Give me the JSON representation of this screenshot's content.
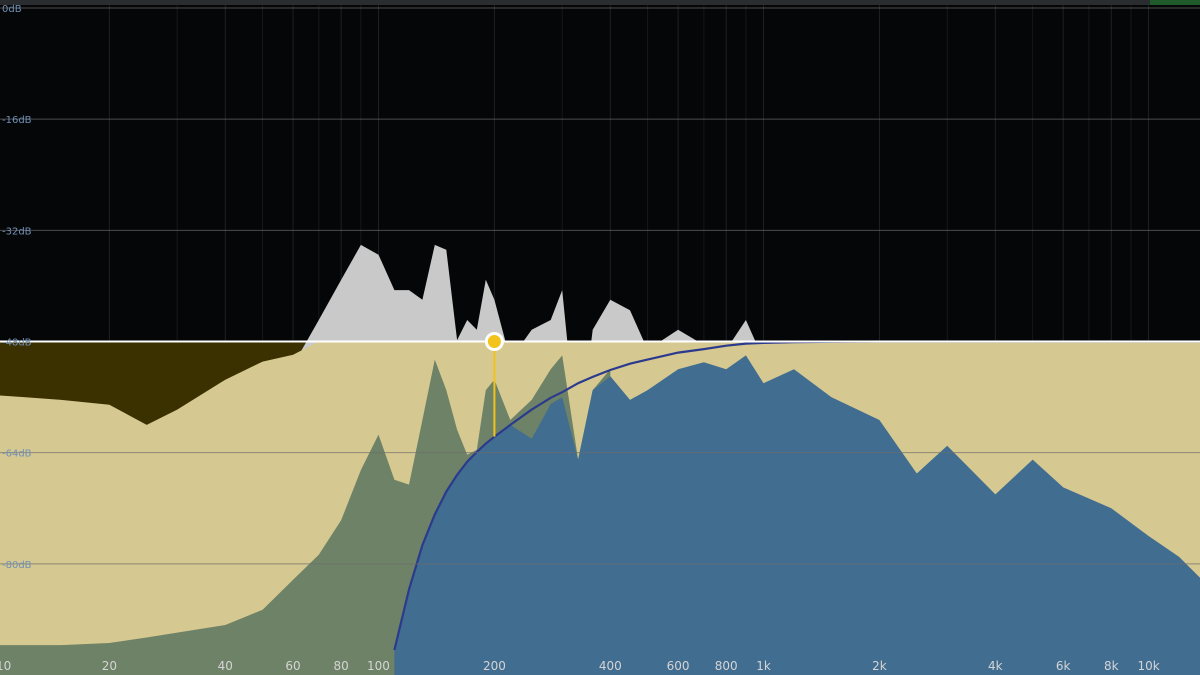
{
  "chart_data": {
    "type": "area",
    "xscale": "log",
    "x": [
      10,
      12,
      15,
      20,
      25,
      30,
      40,
      50,
      60,
      70,
      80,
      90,
      100,
      110,
      120,
      130,
      140,
      150,
      160,
      170,
      180,
      190,
      200,
      220,
      250,
      280,
      300,
      330,
      360,
      400,
      450,
      500,
      600,
      700,
      800,
      900,
      1000,
      1200,
      1500,
      2000,
      2500,
      3000,
      4000,
      5000,
      6000,
      8000,
      10000,
      12000,
      13600
    ],
    "xlim": [
      10.4,
      13600
    ],
    "ylim": [
      -96,
      0
    ],
    "xticks": [
      10,
      20,
      40,
      60,
      80,
      100,
      200,
      400,
      600,
      800,
      {
        "value": 1000,
        "label": "1k"
      },
      {
        "value": 2000,
        "label": "2k"
      },
      {
        "value": 4000,
        "label": "4k"
      },
      {
        "value": 6000,
        "label": "6k"
      },
      {
        "value": 8000,
        "label": "8k"
      },
      {
        "value": 10000,
        "label": "10k"
      }
    ],
    "xminor": [
      30,
      50,
      70,
      90,
      300,
      500,
      700,
      900,
      3000,
      5000,
      7000,
      9000
    ],
    "yticks": [
      {
        "value": 0,
        "label": "0dB"
      },
      {
        "value": -16,
        "label": "-16dB"
      },
      {
        "value": -32,
        "label": "-32dB"
      },
      {
        "value": -48,
        "label": "-48dB"
      },
      {
        "value": -64,
        "label": "-64dB"
      },
      {
        "value": -80,
        "label": "-80dB"
      }
    ],
    "threshold": -48,
    "threshold_color": "#ffffff",
    "below_threshold_color": "#3b3000",
    "node": {
      "x": 200,
      "y": -48,
      "color": "#f2c31b"
    },
    "series": [
      {
        "color": "#c9c9c9",
        "fill": true,
        "values": [
          -75,
          -75,
          -74,
          -72,
          -70,
          -68,
          -64,
          -60,
          -51.4,
          -44.9,
          -39.1,
          -34.1,
          -35.5,
          -40.6,
          -40.6,
          -42.0,
          -34.1,
          -34.8,
          -47.8,
          -44.9,
          -46.3,
          -39.1,
          -42.0,
          -50.6,
          -46.3,
          -44.9,
          -40.6,
          -63.6,
          -46.3,
          -42.0,
          -43.5,
          -49.2,
          -46.3,
          -48.5,
          -49.2,
          -44.9,
          -50.6,
          -48.5,
          -52.1,
          -53.5,
          -62.2,
          -59.3,
          -66.5,
          -60.7,
          -65.0,
          -66.5,
          -70.8,
          -73.7,
          -76.5
        ]
      },
      {
        "color": "#d5c890",
        "fill": true,
        "values": [
          -55.7,
          -56,
          -56.4,
          -57.1,
          -60,
          -57.8,
          -53.5,
          -50.9,
          -49.9,
          -48,
          -48,
          -48,
          -48,
          -48,
          -48,
          -48,
          -48,
          -48,
          -48,
          -48,
          -48,
          -48,
          -48,
          -48,
          -48,
          -48,
          -48,
          -48,
          -48,
          -48,
          -48,
          -48,
          -48,
          -48,
          -48,
          -48,
          -48,
          -48,
          -48,
          -48,
          -48,
          -48,
          -48,
          -48,
          -48,
          -48,
          -48,
          -48,
          -48
        ]
      },
      {
        "color": "#6d8266",
        "fill": true,
        "values": [
          -91.7,
          -91.7,
          -91.7,
          -91.4,
          -90.6,
          -89.9,
          -88.8,
          -86.6,
          -82.3,
          -78.7,
          -73.7,
          -66.5,
          -61.4,
          -67.9,
          -68.6,
          -59.3,
          -50.6,
          -55,
          -60.7,
          -64.3,
          -63.6,
          -55,
          -53.5,
          -59.3,
          -56.4,
          -52,
          -50,
          -65,
          -55,
          -52,
          null,
          null,
          null,
          null,
          null,
          null,
          null,
          null,
          null,
          null,
          null,
          null,
          null,
          null,
          null,
          null,
          null,
          null,
          null
        ]
      },
      {
        "color": "#416d91",
        "fill": true,
        "values": [
          null,
          null,
          null,
          null,
          null,
          null,
          null,
          null,
          null,
          null,
          null,
          null,
          null,
          -92.4,
          -83.7,
          -77.3,
          -72.9,
          -69.6,
          -67.2,
          -65.3,
          -63.9,
          -62.7,
          -61.7,
          -60,
          -62,
          -57,
          -56,
          -65,
          -55,
          -53,
          -56.4,
          -55,
          -52,
          -51,
          -52,
          -50,
          -54,
          -52,
          -56,
          -59.3,
          -67,
          -63,
          -70,
          -65,
          -69,
          -72,
          -76,
          -79,
          -82
        ]
      },
      {
        "color": "#2c3a8e",
        "fill": false,
        "values": [
          null,
          null,
          null,
          null,
          null,
          null,
          null,
          null,
          null,
          null,
          null,
          null,
          null,
          -92.4,
          -83.7,
          -77.3,
          -72.9,
          -69.6,
          -67.2,
          -65.3,
          -63.9,
          -62.7,
          -61.7,
          -60,
          -57.8,
          -56.1,
          -55.3,
          -54,
          -53.1,
          -52.1,
          -51.2,
          -50.6,
          -49.6,
          -49.1,
          -48.6,
          -48.3,
          -48.2,
          -48.1,
          -48.05,
          -48,
          -48,
          -48,
          -48,
          -48,
          -48,
          -48,
          -48,
          -48,
          -48
        ]
      }
    ]
  }
}
